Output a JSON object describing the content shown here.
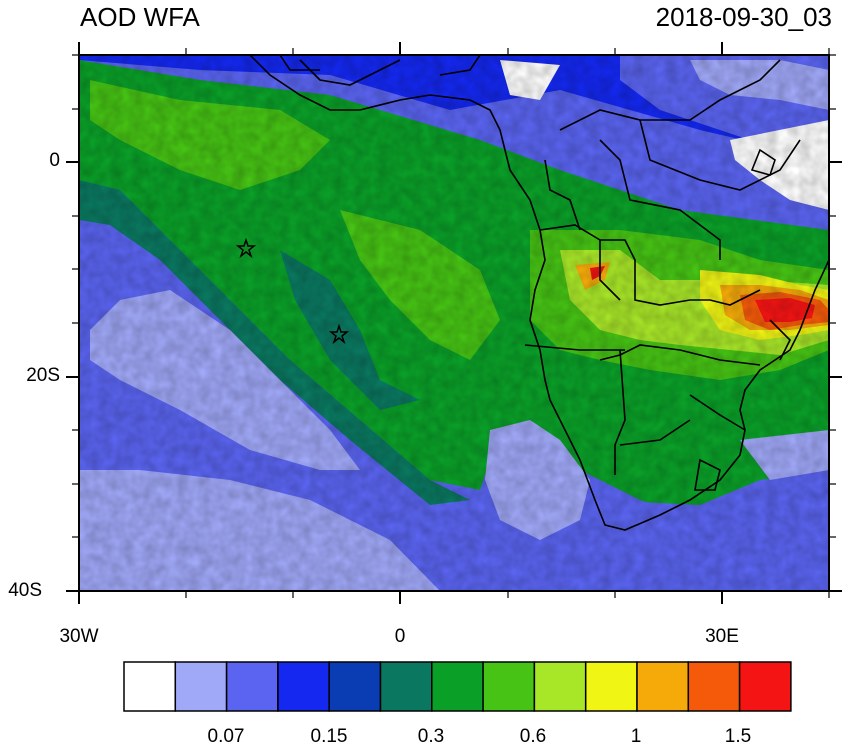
{
  "header": {
    "title": "AOD WFA",
    "timestamp": "2018-09-30_03"
  },
  "axes": {
    "y_ticks": [
      "0",
      "20S",
      "40S"
    ],
    "x_ticks": [
      "30W",
      "0",
      "30E"
    ]
  },
  "colorbar": {
    "colors": [
      "#ffffff",
      "#a0a8f8",
      "#5a64f0",
      "#1428f0",
      "#0a3cb4",
      "#0a7860",
      "#0aa028",
      "#46c314",
      "#a8e628",
      "#f0f514",
      "#f5aa0a",
      "#f55a0a",
      "#f51414"
    ],
    "labels": [
      "0.07",
      "0.15",
      "0.3",
      "0.6",
      "1",
      "1.5"
    ]
  },
  "markers": {
    "symbol": "star",
    "count": 2
  }
}
